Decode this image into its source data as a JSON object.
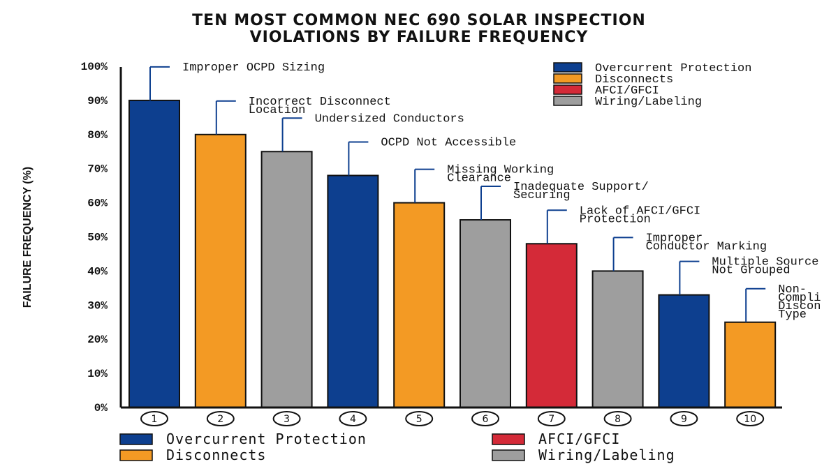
{
  "chart_data": {
    "type": "bar",
    "title": [
      "TEN MOST COMMON NEC 690 SOLAR INSPECTION",
      "VIOLATIONS BY FAILURE FREQUENCY"
    ],
    "ylabel": "FAILURE FREQUENCY (%)",
    "xlabel": "",
    "ylim": [
      0,
      100
    ],
    "yticks": [
      "0%",
      "10%",
      "20%",
      "30%",
      "40%",
      "50%",
      "60%",
      "70%",
      "80%",
      "90%",
      "100%"
    ],
    "categories": [
      "1",
      "2",
      "3",
      "4",
      "5",
      "6",
      "7",
      "8",
      "9",
      "10"
    ],
    "values": [
      90,
      80,
      75,
      68,
      60,
      55,
      48,
      40,
      33,
      25
    ],
    "bar_groups": [
      "Overcurrent Protection",
      "Disconnects",
      "Wiring/Labeling",
      "Overcurrent Protection",
      "Disconnects",
      "Wiring/Labeling",
      "AFCI/GFCI",
      "Wiring/Labeling",
      "Overcurrent Protection",
      "Disconnects"
    ],
    "annotations": [
      [
        "Improper OCPD Sizing"
      ],
      [
        "Incorrect Disconnect",
        "Location"
      ],
      [
        "Undersized Conductors"
      ],
      [
        "OCPD Not Accessible"
      ],
      [
        "Missing Working",
        "Clearance"
      ],
      [
        "Inadequate Support/",
        "Securing"
      ],
      [
        "Lack of AFCI/GFCI",
        "Protection"
      ],
      [
        "Improper",
        "Conductor Marking"
      ],
      [
        "Multiple Source",
        "Not Grouped"
      ],
      [
        "Non-",
        "Compli",
        "Discon",
        "Type"
      ]
    ],
    "legend_top": [
      "Overcurrent Protection",
      "Disconnects",
      "AFCI/GFCI",
      "Wiring/Labeling"
    ],
    "legend_bottom": [
      "Overcurrent Protection",
      "Disconnects",
      "AFCI/GFCI",
      "Wiring/Labeling"
    ],
    "legend_placement": "top-right and bottom",
    "grid": false,
    "colors": {
      "Overcurrent Protection": "#0d3f8f",
      "Disconnects": "#f39a24",
      "AFCI/GFCI": "#d42a38",
      "Wiring/Labeling": "#9e9e9e",
      "leader": "#0d3f8f"
    }
  }
}
